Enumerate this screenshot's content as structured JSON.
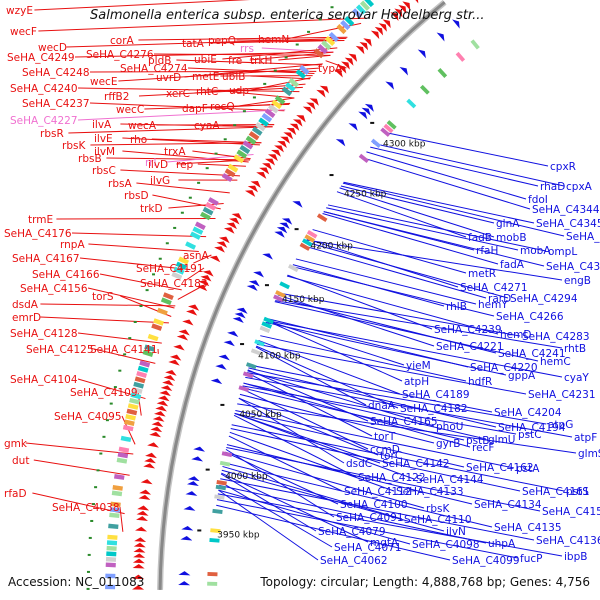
{
  "title": "Salmonella enterica subsp. enterica serovar Heidelberg str...",
  "footer": {
    "accession": "Accession: NC_011083",
    "topology": "Topology: circular; Length: 4,888,768 bp; Genes: 4,756"
  },
  "colors": {
    "forward": "#e81010",
    "reverse": "#1010e0",
    "rna": "#f070d0",
    "backbone": "#888888"
  },
  "kbp_labels": [
    "3950 kbp",
    "4000 kbp",
    "4050 kbp",
    "4100 kbp",
    "4150 kbp",
    "4200 kbp",
    "4250 kbp",
    "4300 kbp"
  ],
  "left_labels": [
    {
      "text": "wzyE",
      "color": "forward"
    },
    {
      "text": "wecF",
      "color": "forward"
    },
    {
      "text": "wecD",
      "color": "forward"
    },
    {
      "text": "SeHA_C4249",
      "color": "forward"
    },
    {
      "text": "SeHA_C4248",
      "color": "forward"
    },
    {
      "text": "SeHA_C4240",
      "color": "forward"
    },
    {
      "text": "SeHA_C4237",
      "color": "forward"
    },
    {
      "text": "SeHA_C4227",
      "color": "rna"
    },
    {
      "text": "rbsR",
      "color": "forward"
    },
    {
      "text": "rbsK",
      "color": "forward"
    },
    {
      "text": "rbsB",
      "color": "forward"
    },
    {
      "text": "rbsC",
      "color": "forward"
    },
    {
      "text": "rbsA",
      "color": "forward"
    },
    {
      "text": "rbsD",
      "color": "forward"
    },
    {
      "text": "trkD",
      "color": "forward"
    },
    {
      "text": "trmE",
      "color": "forward"
    },
    {
      "text": "SeHA_C4176",
      "color": "forward"
    },
    {
      "text": "rnpA",
      "color": "forward"
    },
    {
      "text": "SeHA_C4167",
      "color": "forward"
    },
    {
      "text": "SeHA_C4166",
      "color": "forward"
    },
    {
      "text": "SeHA_C4156",
      "color": "forward"
    },
    {
      "text": "dsdA",
      "color": "forward"
    },
    {
      "text": "emrD",
      "color": "forward"
    },
    {
      "text": "SeHA_C4128",
      "color": "forward"
    },
    {
      "text": "SeHA_C4125",
      "color": "forward"
    },
    {
      "text": "SeHA_C4104",
      "color": "forward"
    },
    {
      "text": "SeHA_C4109",
      "color": "forward"
    },
    {
      "text": "SeHA_C4095",
      "color": "forward"
    },
    {
      "text": "gmk",
      "color": "forward"
    },
    {
      "text": "dut",
      "color": "forward"
    },
    {
      "text": "rfaD",
      "color": "forward"
    },
    {
      "text": "SeHA_C4038",
      "color": "forward"
    },
    {
      "text": "corA",
      "color": "forward"
    },
    {
      "text": "SeHA_C4276",
      "color": "forward"
    },
    {
      "text": "SeHA_C4274",
      "color": "forward"
    },
    {
      "text": "wecE",
      "color": "forward"
    },
    {
      "text": "rffB2",
      "color": "forward"
    },
    {
      "text": "wecC",
      "color": "forward"
    },
    {
      "text": "wecA",
      "color": "forward"
    },
    {
      "text": "ilvA",
      "color": "forward"
    },
    {
      "text": "ilvE",
      "color": "forward"
    },
    {
      "text": "ilvM",
      "color": "forward"
    },
    {
      "text": "rrl",
      "color": "rna"
    },
    {
      "text": "ilvD",
      "color": "forward"
    },
    {
      "text": "ilvG",
      "color": "forward"
    },
    {
      "text": "rep",
      "color": "forward"
    },
    {
      "text": "rho",
      "color": "forward"
    },
    {
      "text": "trxA",
      "color": "forward"
    },
    {
      "text": "pldB",
      "color": "forward"
    },
    {
      "text": "uvrD",
      "color": "forward"
    },
    {
      "text": "xerC",
      "color": "forward"
    },
    {
      "text": "dapF",
      "color": "forward"
    },
    {
      "text": "cyaA",
      "color": "forward"
    },
    {
      "text": "tatA",
      "color": "forward"
    },
    {
      "text": "pepQ",
      "color": "forward"
    },
    {
      "text": "rrs",
      "color": "rna"
    },
    {
      "text": "hemN",
      "color": "forward"
    },
    {
      "text": "ubiE",
      "color": "forward"
    },
    {
      "text": "fre",
      "color": "forward"
    },
    {
      "text": "trkH",
      "color": "forward"
    },
    {
      "text": "metE",
      "color": "forward"
    },
    {
      "text": "ubiB",
      "color": "forward"
    },
    {
      "text": "rhtC",
      "color": "forward"
    },
    {
      "text": "udp",
      "color": "forward"
    },
    {
      "text": "recQ",
      "color": "forward"
    },
    {
      "text": "typA",
      "color": "forward"
    },
    {
      "text": "asnA",
      "color": "forward"
    },
    {
      "text": "SeHA_C4191",
      "color": "forward"
    },
    {
      "text": "SeHA_C4183",
      "color": "forward"
    },
    {
      "text": "torS",
      "color": "forward"
    },
    {
      "text": "SeHA_C4141",
      "color": "forward"
    }
  ],
  "right_labels": [
    {
      "text": "cpxR"
    },
    {
      "text": "rhaD"
    },
    {
      "text": "cpxA"
    },
    {
      "text": "fdoI"
    },
    {
      "text": "SeHA_C4344"
    },
    {
      "text": "glnA"
    },
    {
      "text": "SeHA_C4345"
    },
    {
      "text": "fadB"
    },
    {
      "text": "mobB"
    },
    {
      "text": "SeHA_C4340"
    },
    {
      "text": "rfaH"
    },
    {
      "text": "mobA"
    },
    {
      "text": "ompL"
    },
    {
      "text": "fadA"
    },
    {
      "text": "SeHA_C4325"
    },
    {
      "text": "engB"
    },
    {
      "text": "metR"
    },
    {
      "text": "SeHA_C4271"
    },
    {
      "text": "rarD"
    },
    {
      "text": "SeHA_C4294"
    },
    {
      "text": "rhlB"
    },
    {
      "text": "hemY"
    },
    {
      "text": "SeHA_C4266"
    },
    {
      "text": "SeHA_C4239"
    },
    {
      "text": "hemD"
    },
    {
      "text": "SeHA_C4283"
    },
    {
      "text": "rhtB"
    },
    {
      "text": "SeHA_C4221"
    },
    {
      "text": "SeHA_C4241"
    },
    {
      "text": "hemC"
    },
    {
      "text": "yieM"
    },
    {
      "text": "SeHA_C4220"
    },
    {
      "text": "gppA"
    },
    {
      "text": "cyaY"
    },
    {
      "text": "atpH"
    },
    {
      "text": "hdfR"
    },
    {
      "text": "SeHA_C4231"
    },
    {
      "text": "SeHA_C4189"
    },
    {
      "text": "dnaA"
    },
    {
      "text": "SeHA_C4182"
    },
    {
      "text": "SeHA_C4204"
    },
    {
      "text": "SeHA_C4165"
    },
    {
      "text": "phoU"
    },
    {
      "text": "SeHA_C4194"
    },
    {
      "text": "torT"
    },
    {
      "text": "gyrB"
    },
    {
      "text": "pstB"
    },
    {
      "text": "glmU"
    },
    {
      "text": "ccmD"
    },
    {
      "text": "recF"
    },
    {
      "text": "pstC"
    },
    {
      "text": "atpG"
    },
    {
      "text": "torC"
    },
    {
      "text": "atpF"
    },
    {
      "text": "dsdC"
    },
    {
      "text": "SeHA_C4142"
    },
    {
      "text": "SeHA_C4162"
    },
    {
      "text": "pstA"
    },
    {
      "text": "SeHA_C4122"
    },
    {
      "text": "SeHA_C4144"
    },
    {
      "text": "glmS"
    },
    {
      "text": "SeHA_C4112"
    },
    {
      "text": "SeHA_C4133"
    },
    {
      "text": "SeHA_C4161"
    },
    {
      "text": "pstS"
    },
    {
      "text": "SeHA_C4100"
    },
    {
      "text": "rbsK"
    },
    {
      "text": "SeHA_C4134"
    },
    {
      "text": "SeHA_C4159"
    },
    {
      "text": "SeHA_C4091"
    },
    {
      "text": "SeHA_C4110"
    },
    {
      "text": "SeHA_C4079"
    },
    {
      "text": "ilvN"
    },
    {
      "text": "SeHA_C4135"
    },
    {
      "text": "mgtA"
    },
    {
      "text": "SeHA_C4098"
    },
    {
      "text": "uhpA"
    },
    {
      "text": "SeHA_C4136"
    },
    {
      "text": "SeHA_C4071"
    },
    {
      "text": "SeHA_C4062"
    },
    {
      "text": "SeHA_C4099"
    },
    {
      "text": "fucP"
    },
    {
      "text": "ibpB"
    }
  ]
}
